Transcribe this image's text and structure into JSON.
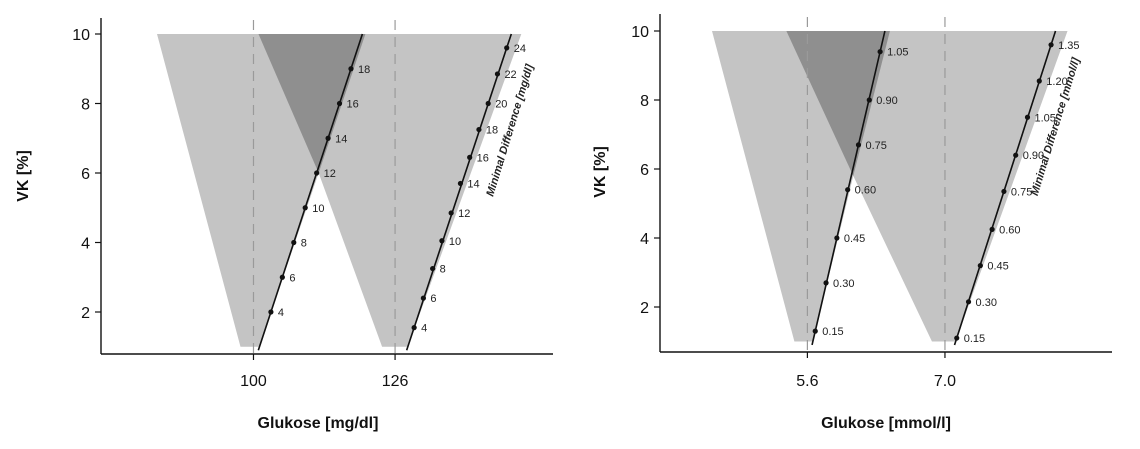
{
  "chart_data": [
    {
      "type": "area",
      "xlabel": "Glukose [mg/dl]",
      "ylabel": "VK [%]",
      "ylim": [
        1,
        10
      ],
      "xlim": [
        72,
        155
      ],
      "y_ticks": [
        "2",
        "4",
        "6",
        "8",
        "10"
      ],
      "x_ticks": [
        "100",
        "126"
      ],
      "thresholds": [
        100,
        126
      ],
      "band_colors": {
        "light": "#c4c4c4",
        "dark": "#8f8f8f"
      },
      "cutoff_cv": 6,
      "scales": [
        {
          "name": "",
          "points": [
            {
              "x": 103.2,
              "y": 2,
              "label": "4"
            },
            {
              "x": 105.3,
              "y": 3,
              "label": "6"
            },
            {
              "x": 107.4,
              "y": 4,
              "label": "8"
            },
            {
              "x": 109.5,
              "y": 5,
              "label": "10"
            },
            {
              "x": 111.6,
              "y": 6,
              "label": "12"
            },
            {
              "x": 113.7,
              "y": 7,
              "label": "14"
            },
            {
              "x": 115.8,
              "y": 8,
              "label": "16"
            },
            {
              "x": 117.9,
              "y": 9,
              "label": "18"
            }
          ]
        },
        {
          "name": "Minimal Difference [mg/dl]",
          "points": [
            {
              "x": 129.5,
              "y": 1.55,
              "label": "4"
            },
            {
              "x": 131.2,
              "y": 2.4,
              "label": "6"
            },
            {
              "x": 132.9,
              "y": 3.25,
              "label": "8"
            },
            {
              "x": 134.6,
              "y": 4.05,
              "label": "10"
            },
            {
              "x": 136.3,
              "y": 4.85,
              "label": "12"
            },
            {
              "x": 138.0,
              "y": 5.7,
              "label": "14"
            },
            {
              "x": 139.7,
              "y": 6.45,
              "label": "16"
            },
            {
              "x": 141.4,
              "y": 7.25,
              "label": "18"
            },
            {
              "x": 143.1,
              "y": 8.0,
              "label": "20"
            },
            {
              "x": 144.8,
              "y": 8.85,
              "label": "22"
            },
            {
              "x": 146.5,
              "y": 9.6,
              "label": "24"
            }
          ]
        }
      ]
    },
    {
      "type": "area",
      "xlabel": "Glukose [mmol/l]",
      "ylabel": "VK [%]",
      "ylim": [
        1,
        10
      ],
      "xlim": [
        4.1,
        8.7
      ],
      "y_ticks": [
        "2",
        "4",
        "6",
        "8",
        "10"
      ],
      "x_ticks": [
        "5.6",
        "7.0"
      ],
      "thresholds": [
        5.6,
        7.0
      ],
      "band_colors": {
        "light": "#c4c4c4",
        "dark": "#8f8f8f"
      },
      "cutoff_cv": 5.8,
      "scales": [
        {
          "name": "",
          "points": [
            {
              "x": 5.68,
              "y": 1.3,
              "label": "0.15"
            },
            {
              "x": 5.79,
              "y": 2.7,
              "label": "0.30"
            },
            {
              "x": 5.9,
              "y": 4.0,
              "label": "0.45"
            },
            {
              "x": 6.01,
              "y": 5.4,
              "label": "0.60"
            },
            {
              "x": 6.12,
              "y": 6.7,
              "label": "0.75"
            },
            {
              "x": 6.23,
              "y": 8.0,
              "label": "0.90"
            },
            {
              "x": 6.34,
              "y": 9.4,
              "label": "1.05"
            }
          ]
        },
        {
          "name": "Minimal Difference [mmol/l]",
          "points": [
            {
              "x": 7.12,
              "y": 1.1,
              "label": "0.15"
            },
            {
              "x": 7.24,
              "y": 2.15,
              "label": "0.30"
            },
            {
              "x": 7.36,
              "y": 3.2,
              "label": "0.45"
            },
            {
              "x": 7.48,
              "y": 4.25,
              "label": "0.60"
            },
            {
              "x": 7.6,
              "y": 5.35,
              "label": "0.75"
            },
            {
              "x": 7.72,
              "y": 6.4,
              "label": "0.90"
            },
            {
              "x": 7.84,
              "y": 7.5,
              "label": "1.05"
            },
            {
              "x": 7.96,
              "y": 8.55,
              "label": "1.20"
            },
            {
              "x": 8.08,
              "y": 9.6,
              "label": "1.35"
            }
          ]
        }
      ]
    }
  ]
}
